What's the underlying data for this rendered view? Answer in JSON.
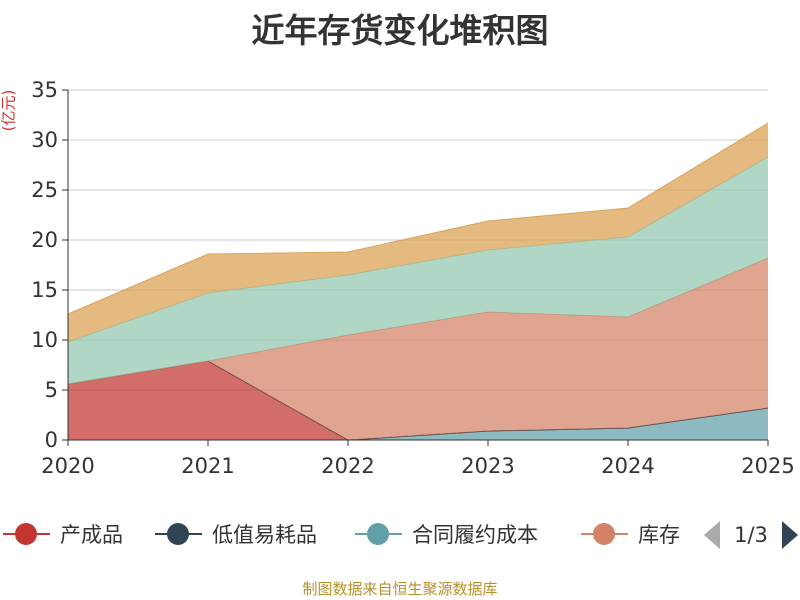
{
  "chart_data": {
    "type": "area",
    "stacked": true,
    "title": "近年存货变化堆积图",
    "unit": "(亿元)",
    "x": [
      "2020",
      "2021",
      "2022",
      "2023",
      "2024",
      "2025"
    ],
    "ylim": [
      0,
      35
    ],
    "yticks": [
      "0",
      "5",
      "10",
      "15",
      "20",
      "25",
      "30",
      "35"
    ],
    "grid": true,
    "series": [
      {
        "name": "合同履约成本",
        "color": "#61a0a8",
        "values": [
          0,
          0,
          0,
          0.9,
          1.2,
          3.2
        ],
        "visible": true
      },
      {
        "name": "产成品",
        "color": "#c23531",
        "values": [
          5.6,
          7.9,
          0,
          0,
          0,
          0
        ],
        "visible": true
      },
      {
        "name": "低值易耗品",
        "color": "#2f4554",
        "values": [
          0,
          0,
          0,
          0,
          0,
          0
        ],
        "visible": true
      },
      {
        "name": "库存",
        "color": "#d48265",
        "values": [
          0,
          0,
          10.5,
          11.9,
          11.1,
          15.0
        ],
        "visible": true
      },
      {
        "name": "",
        "color": "#91c7ae",
        "values": [
          4.2,
          6.8,
          6.0,
          6.2,
          8.0,
          10.1
        ],
        "visible": true
      },
      {
        "name": "",
        "color": "#d9a050",
        "values": [
          2.8,
          3.9,
          2.3,
          2.9,
          2.9,
          3.4
        ],
        "visible": true
      }
    ],
    "legend": {
      "placement": "bottom",
      "items": [
        {
          "name": "产成品",
          "color": "#c23531"
        },
        {
          "name": "低值易耗品",
          "color": "#2f4554"
        },
        {
          "name": "合同履约成本",
          "color": "#61a0a8"
        },
        {
          "name": "库存",
          "color": "#d48265"
        }
      ],
      "page": "1/3"
    }
  },
  "source_note": "制图数据来自恒生聚源数据库"
}
